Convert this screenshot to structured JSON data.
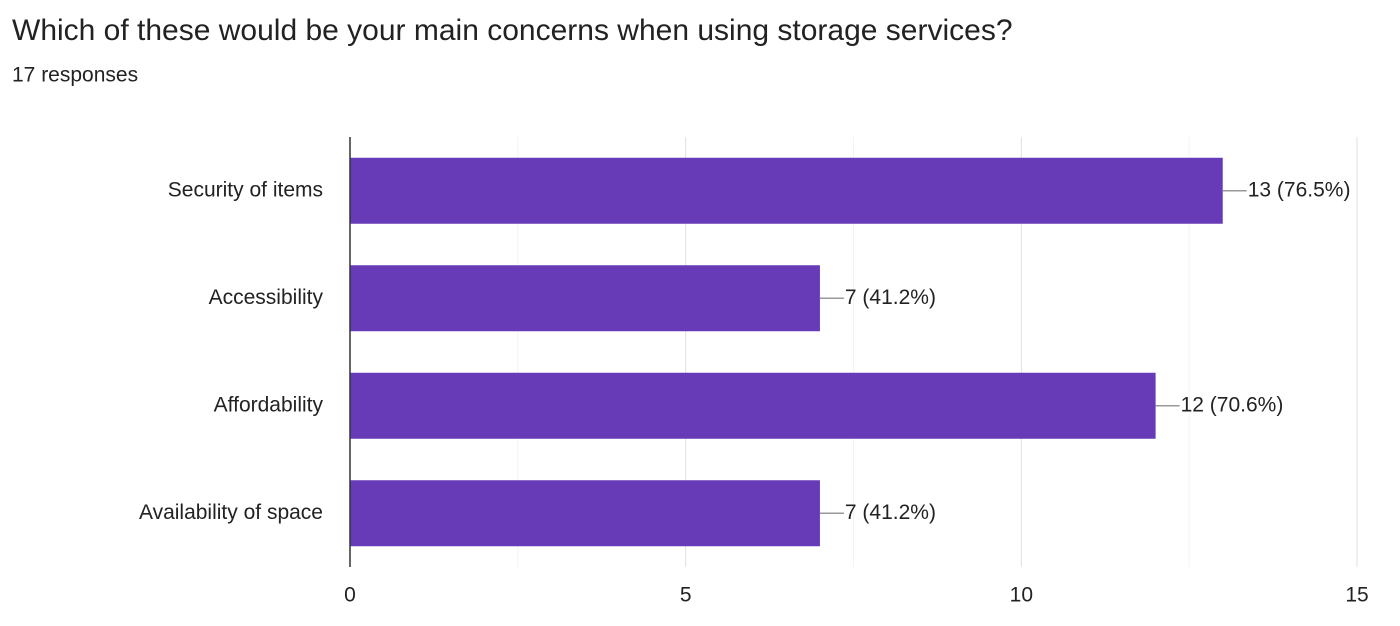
{
  "chart_data": {
    "type": "bar",
    "orientation": "horizontal",
    "title": "Which of these would be your main concerns when using storage services?",
    "subtitle": "17 responses",
    "categories": [
      "Security of items",
      "Accessibility",
      "Affordability",
      "Availability of space"
    ],
    "values": [
      13,
      7,
      12,
      7
    ],
    "value_labels": [
      "13 (76.5%)",
      "7 (41.2%)",
      "12 (70.6%)",
      "7 (41.2%)"
    ],
    "color": "#673ab7",
    "xlim": [
      0,
      15
    ],
    "xticks": [
      0,
      5,
      10,
      15
    ],
    "minor_xticks": [
      2.5,
      7.5,
      12.5
    ],
    "grid": true
  }
}
